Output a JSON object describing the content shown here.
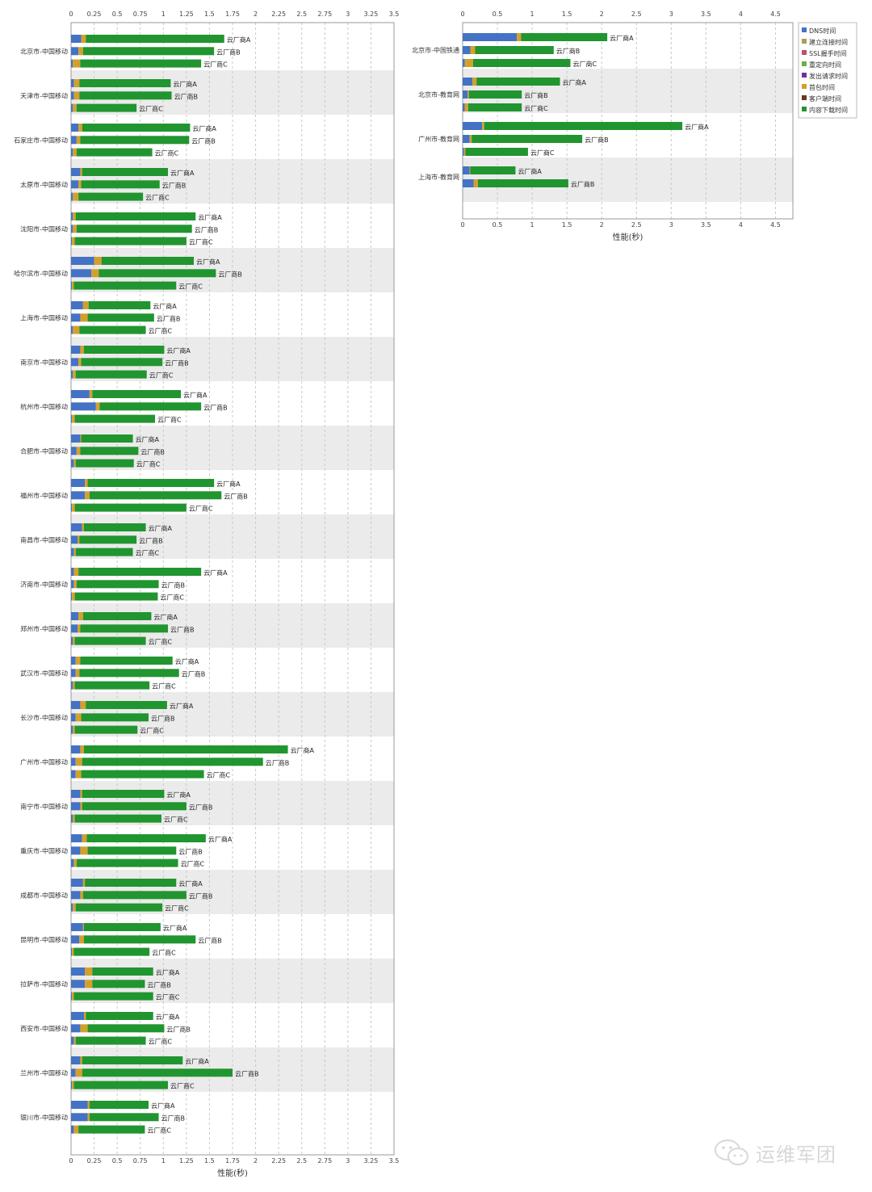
{
  "legend": [
    {
      "name": "DNS时间",
      "color": "#4472c4"
    },
    {
      "name": "建立连接时间",
      "color": "#a5a05a"
    },
    {
      "name": "SSL握手时间",
      "color": "#c0506e"
    },
    {
      "name": "重定向时间",
      "color": "#70ad47"
    },
    {
      "name": "发出请求时间",
      "color": "#7030a0"
    },
    {
      "name": "首包时间",
      "color": "#d4a02c"
    },
    {
      "name": "客户端时间",
      "color": "#6b3a1e"
    },
    {
      "name": "内容下载时间",
      "color": "#21952f"
    }
  ],
  "chart_data": [
    {
      "type": "bar",
      "orientation": "horizontal",
      "stacked": true,
      "xlabel": "性能(秒)",
      "xlim": [
        0,
        3.5
      ],
      "xticks": [
        "0",
        "0.25",
        "0.5",
        "0.75",
        "1",
        "1.25",
        "1.5",
        "1.75",
        "2",
        "2.25",
        "2.5",
        "2.75",
        "3",
        "3.25",
        "3.5"
      ],
      "grid": "vertical-dashed",
      "categories": [
        "北京市-中国移动",
        "天津市-中国移动",
        "石家庄市-中国移动",
        "太原市-中国移动",
        "沈阳市-中国移动",
        "哈尔滨市-中国移动",
        "上海市-中国移动",
        "南京市-中国移动",
        "杭州市-中国移动",
        "合肥市-中国移动",
        "福州市-中国移动",
        "南昌市-中国移动",
        "济南市-中国移动",
        "郑州市-中国移动",
        "武汉市-中国移动",
        "长沙市-中国移动",
        "广州市-中国移动",
        "南宁市-中国移动",
        "重庆市-中国移动",
        "成都市-中国移动",
        "昆明市-中国移动",
        "拉萨市-中国移动",
        "西安市-中国移动",
        "兰州市-中国移动",
        "银川市-中国移动"
      ],
      "bars": [
        [
          {
            "vendor": "云厂商A",
            "dns": 0.11,
            "conn": 0.05,
            "download": 1.5
          },
          {
            "vendor": "云厂商B",
            "dns": 0.08,
            "conn": 0.05,
            "download": 1.42
          },
          {
            "vendor": "云厂商C",
            "dns": 0.02,
            "conn": 0.08,
            "download": 1.31
          }
        ],
        [
          {
            "vendor": "云厂商A",
            "dns": 0.03,
            "conn": 0.06,
            "download": 0.99
          },
          {
            "vendor": "云厂商B",
            "dns": 0.03,
            "conn": 0.06,
            "download": 1.0
          },
          {
            "vendor": "云厂商C",
            "dns": 0.02,
            "conn": 0.04,
            "download": 0.65
          }
        ],
        [
          {
            "vendor": "云厂商A",
            "dns": 0.08,
            "conn": 0.04,
            "download": 1.17
          },
          {
            "vendor": "云厂商B",
            "dns": 0.06,
            "conn": 0.04,
            "download": 1.18
          },
          {
            "vendor": "云厂商C",
            "dns": 0.02,
            "conn": 0.04,
            "download": 0.82
          }
        ],
        [
          {
            "vendor": "云厂商A",
            "dns": 0.1,
            "conn": 0.02,
            "download": 0.93
          },
          {
            "vendor": "云厂商B",
            "dns": 0.08,
            "conn": 0.03,
            "download": 0.85
          },
          {
            "vendor": "云厂商C",
            "dns": 0.02,
            "conn": 0.06,
            "download": 0.7
          }
        ],
        [
          {
            "vendor": "云厂商A",
            "dns": 0.02,
            "conn": 0.03,
            "download": 1.3
          },
          {
            "vendor": "云厂商B",
            "dns": 0.02,
            "conn": 0.04,
            "download": 1.25
          },
          {
            "vendor": "云厂商C",
            "dns": 0.01,
            "conn": 0.03,
            "download": 1.21
          }
        ],
        [
          {
            "vendor": "云厂商A",
            "dns": 0.25,
            "conn": 0.08,
            "download": 1.0
          },
          {
            "vendor": "云厂商B",
            "dns": 0.22,
            "conn": 0.08,
            "download": 1.27
          },
          {
            "vendor": "云厂商C",
            "dns": 0.01,
            "conn": 0.02,
            "download": 1.11
          }
        ],
        [
          {
            "vendor": "云厂商A",
            "dns": 0.13,
            "conn": 0.06,
            "download": 0.67
          },
          {
            "vendor": "云厂商B",
            "dns": 0.1,
            "conn": 0.08,
            "download": 0.72
          },
          {
            "vendor": "云厂商C",
            "dns": 0.02,
            "conn": 0.07,
            "download": 0.72
          }
        ],
        [
          {
            "vendor": "云厂商A",
            "dns": 0.1,
            "conn": 0.04,
            "download": 0.87
          },
          {
            "vendor": "云厂商B",
            "dns": 0.08,
            "conn": 0.03,
            "download": 0.88
          },
          {
            "vendor": "云厂商C",
            "dns": 0.02,
            "conn": 0.03,
            "download": 0.77
          }
        ],
        [
          {
            "vendor": "云厂商A",
            "dns": 0.2,
            "conn": 0.03,
            "download": 0.96
          },
          {
            "vendor": "云厂商B",
            "dns": 0.27,
            "conn": 0.04,
            "download": 1.1
          },
          {
            "vendor": "云厂商C",
            "dns": 0.01,
            "conn": 0.03,
            "download": 0.87
          }
        ],
        [
          {
            "vendor": "云厂商A",
            "dns": 0.1,
            "conn": 0.01,
            "download": 0.56
          },
          {
            "vendor": "云厂商B",
            "dns": 0.06,
            "conn": 0.04,
            "download": 0.63
          },
          {
            "vendor": "云厂商C",
            "dns": 0.03,
            "conn": 0.02,
            "download": 0.63
          }
        ],
        [
          {
            "vendor": "云厂商A",
            "dns": 0.15,
            "conn": 0.03,
            "download": 1.37
          },
          {
            "vendor": "云厂商B",
            "dns": 0.15,
            "conn": 0.05,
            "download": 1.43
          },
          {
            "vendor": "云厂商C",
            "dns": 0.01,
            "conn": 0.03,
            "download": 1.21
          }
        ],
        [
          {
            "vendor": "云厂商A",
            "dns": 0.12,
            "conn": 0.02,
            "download": 0.67
          },
          {
            "vendor": "云厂商B",
            "dns": 0.07,
            "conn": 0.02,
            "download": 0.62
          },
          {
            "vendor": "云厂商C",
            "dns": 0.03,
            "conn": 0.02,
            "download": 0.62
          }
        ],
        [
          {
            "vendor": "云厂商A",
            "dns": 0.03,
            "conn": 0.05,
            "download": 1.33
          },
          {
            "vendor": "云厂商B",
            "dns": 0.03,
            "conn": 0.03,
            "download": 0.89
          },
          {
            "vendor": "云厂商C",
            "dns": 0.01,
            "conn": 0.03,
            "download": 0.9
          }
        ],
        [
          {
            "vendor": "云厂商A",
            "dns": 0.08,
            "conn": 0.05,
            "download": 0.74
          },
          {
            "vendor": "云厂商B",
            "dns": 0.07,
            "conn": 0.03,
            "download": 0.95
          },
          {
            "vendor": "云厂商C",
            "dns": 0.02,
            "conn": 0.02,
            "download": 0.77
          }
        ],
        [
          {
            "vendor": "云厂商A",
            "dns": 0.05,
            "conn": 0.05,
            "download": 1.0
          },
          {
            "vendor": "云厂商B",
            "dns": 0.05,
            "conn": 0.04,
            "download": 1.08
          },
          {
            "vendor": "云厂商C",
            "dns": 0.02,
            "conn": 0.02,
            "download": 0.81
          }
        ],
        [
          {
            "vendor": "云厂商A",
            "dns": 0.1,
            "conn": 0.06,
            "download": 0.88
          },
          {
            "vendor": "云厂商B",
            "dns": 0.05,
            "conn": 0.06,
            "download": 0.73
          },
          {
            "vendor": "云厂商C",
            "dns": 0.02,
            "conn": 0.02,
            "download": 0.68
          }
        ],
        [
          {
            "vendor": "云厂商A",
            "dns": 0.1,
            "conn": 0.04,
            "download": 2.21
          },
          {
            "vendor": "云厂商B",
            "dns": 0.05,
            "conn": 0.07,
            "download": 1.96
          },
          {
            "vendor": "云厂商C",
            "dns": 0.05,
            "conn": 0.06,
            "download": 1.33
          }
        ],
        [
          {
            "vendor": "云厂商A",
            "dns": 0.1,
            "conn": 0.02,
            "download": 0.89
          },
          {
            "vendor": "云厂商B",
            "dns": 0.1,
            "conn": 0.02,
            "download": 1.13
          },
          {
            "vendor": "云厂商C",
            "dns": 0.02,
            "conn": 0.02,
            "download": 0.94
          }
        ],
        [
          {
            "vendor": "云厂商A",
            "dns": 0.12,
            "conn": 0.05,
            "download": 1.29
          },
          {
            "vendor": "云厂商B",
            "dns": 0.1,
            "conn": 0.08,
            "download": 0.96
          },
          {
            "vendor": "云厂商C",
            "dns": 0.03,
            "conn": 0.03,
            "download": 1.1
          }
        ],
        [
          {
            "vendor": "云厂商A",
            "dns": 0.13,
            "conn": 0.02,
            "download": 0.99
          },
          {
            "vendor": "云厂商B",
            "dns": 0.1,
            "conn": 0.03,
            "download": 1.12
          },
          {
            "vendor": "云厂商C",
            "dns": 0.02,
            "conn": 0.03,
            "download": 0.94
          }
        ],
        [
          {
            "vendor": "云厂商A",
            "dns": 0.13,
            "conn": 0.01,
            "download": 0.83
          },
          {
            "vendor": "云厂商B",
            "dns": 0.09,
            "conn": 0.05,
            "download": 1.21
          },
          {
            "vendor": "云厂商C",
            "dns": 0.01,
            "conn": 0.02,
            "download": 0.82
          }
        ],
        [
          {
            "vendor": "云厂商A",
            "dns": 0.15,
            "conn": 0.08,
            "download": 0.66
          },
          {
            "vendor": "云厂商B",
            "dns": 0.15,
            "conn": 0.08,
            "download": 0.57
          },
          {
            "vendor": "云厂商C",
            "dns": 0.01,
            "conn": 0.02,
            "download": 0.86
          }
        ],
        [
          {
            "vendor": "云厂商A",
            "dns": 0.14,
            "conn": 0.02,
            "download": 0.73
          },
          {
            "vendor": "云厂商B",
            "dns": 0.1,
            "conn": 0.08,
            "download": 0.83
          },
          {
            "vendor": "云厂商C",
            "dns": 0.03,
            "conn": 0.02,
            "download": 0.76
          }
        ],
        [
          {
            "vendor": "云厂商A",
            "dns": 0.1,
            "conn": 0.02,
            "download": 1.09
          },
          {
            "vendor": "云厂商B",
            "dns": 0.05,
            "conn": 0.07,
            "download": 1.63
          },
          {
            "vendor": "云厂商C",
            "dns": 0.01,
            "conn": 0.02,
            "download": 1.02
          }
        ],
        [
          {
            "vendor": "云厂商A",
            "dns": 0.18,
            "conn": 0.02,
            "download": 0.64
          },
          {
            "vendor": "云厂商B",
            "dns": 0.18,
            "conn": 0.02,
            "download": 0.75
          },
          {
            "vendor": "云厂商C",
            "dns": 0.03,
            "conn": 0.05,
            "download": 0.72
          }
        ]
      ]
    },
    {
      "type": "bar",
      "orientation": "horizontal",
      "stacked": true,
      "xlabel": "性能(秒)",
      "xlim": [
        0,
        4.75
      ],
      "xticks": [
        "0",
        "0.5",
        "1",
        "1.5",
        "2",
        "2.5",
        "3",
        "3.5",
        "4",
        "4.5"
      ],
      "grid": "vertical-dashed",
      "legend_position": "right",
      "categories": [
        "北京市-中国铁通",
        "北京市-教育网",
        "广州市-教育网",
        "上海市-教育网"
      ],
      "bars": [
        [
          {
            "vendor": "云厂商A",
            "dns": 0.78,
            "conn": 0.06,
            "download": 1.24
          },
          {
            "vendor": "云厂商B",
            "dns": 0.11,
            "conn": 0.07,
            "download": 1.13
          },
          {
            "vendor": "云厂商C",
            "dns": 0.03,
            "conn": 0.12,
            "download": 1.4
          }
        ],
        [
          {
            "vendor": "云厂商A",
            "dns": 0.14,
            "conn": 0.06,
            "download": 1.2
          },
          {
            "vendor": "云厂商B",
            "dns": 0.07,
            "conn": 0.02,
            "download": 0.76
          },
          {
            "vendor": "云厂商C",
            "dns": 0.03,
            "conn": 0.05,
            "download": 0.77
          }
        ],
        [
          {
            "vendor": "云厂商A",
            "dns": 0.28,
            "conn": 0.03,
            "download": 2.85
          },
          {
            "vendor": "云厂商B",
            "dns": 0.1,
            "conn": 0.03,
            "download": 1.59
          },
          {
            "vendor": "云厂商C",
            "dns": 0.02,
            "conn": 0.02,
            "download": 0.9
          }
        ],
        [
          {
            "vendor": "云厂商A",
            "dns": 0.1,
            "conn": 0.01,
            "download": 0.65
          },
          {
            "vendor": "云厂商B",
            "dns": 0.16,
            "conn": 0.06,
            "download": 1.3
          }
        ]
      ]
    }
  ],
  "watermark": {
    "icon": "wechat-icon",
    "text": "运维军团"
  }
}
